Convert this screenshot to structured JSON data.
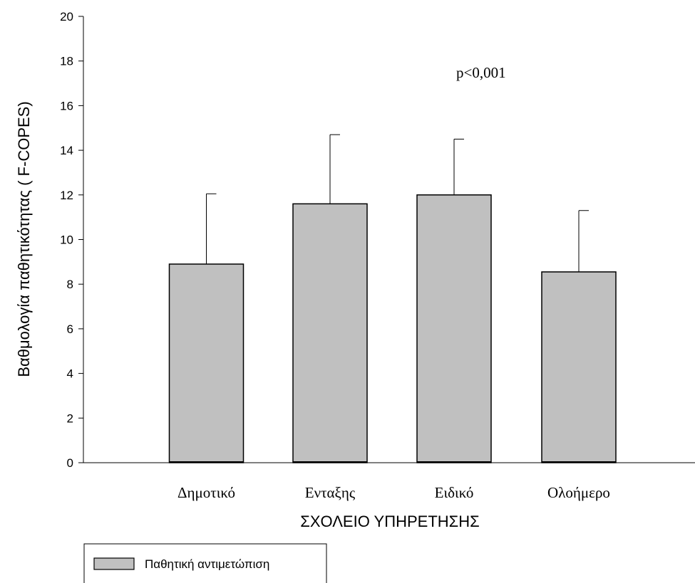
{
  "chart_data": {
    "type": "bar",
    "title": "",
    "xlabel": "ΣΧΟΛΕΙΟ ΥΠΗΡΕΤΗΣΗΣ",
    "ylabel": "Βαθμολογία παθητικότητας ( F-COPES)",
    "ylim": [
      0,
      20
    ],
    "yticks": [
      "0",
      "2",
      "4",
      "6",
      "8",
      "10",
      "12",
      "14",
      "16",
      "18",
      "20"
    ],
    "categories": [
      "Δημοτικό",
      "Ενταξης",
      "Ειδικό",
      "Ολοήμερο"
    ],
    "series": [
      {
        "name": "Παθητική αντιμετώπιση",
        "values": [
          8.9,
          11.6,
          12.0,
          8.55
        ],
        "error_upper": [
          12.05,
          14.7,
          14.5,
          11.3
        ]
      }
    ],
    "annotation": "p<0,001",
    "legend_position": "bottom-left",
    "bar_color": "#c0c0c0",
    "grid": false
  }
}
